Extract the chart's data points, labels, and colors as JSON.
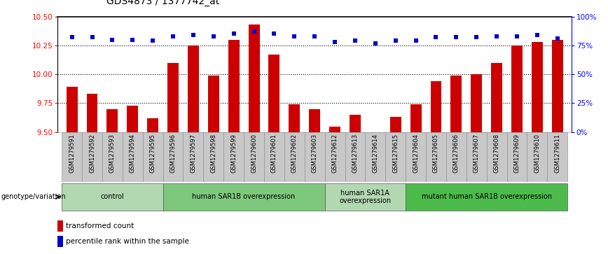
{
  "title": "GDS4873 / 1377742_at",
  "samples": [
    "GSM1279591",
    "GSM1279592",
    "GSM1279593",
    "GSM1279594",
    "GSM1279595",
    "GSM1279596",
    "GSM1279597",
    "GSM1279598",
    "GSM1279599",
    "GSM1279600",
    "GSM1279601",
    "GSM1279602",
    "GSM1279603",
    "GSM1279612",
    "GSM1279613",
    "GSM1279614",
    "GSM1279615",
    "GSM1279604",
    "GSM1279605",
    "GSM1279606",
    "GSM1279607",
    "GSM1279608",
    "GSM1279609",
    "GSM1279610",
    "GSM1279611"
  ],
  "bar_values": [
    9.89,
    9.83,
    9.7,
    9.73,
    9.62,
    10.1,
    10.25,
    9.99,
    10.3,
    10.43,
    10.17,
    9.74,
    9.7,
    9.55,
    9.65,
    9.5,
    9.63,
    9.74,
    9.94,
    9.99,
    10.0,
    10.1,
    10.25,
    10.28,
    10.3
  ],
  "percentile_values": [
    82,
    82,
    80,
    80,
    79,
    83,
    84,
    83,
    85,
    87,
    85,
    83,
    83,
    78,
    79,
    77,
    79,
    79,
    82,
    82,
    82,
    83,
    83,
    84,
    81
  ],
  "groups": [
    {
      "label": "control",
      "start": 0,
      "end": 4,
      "color": "#b2d8b2"
    },
    {
      "label": "human SAR1B overexpression",
      "start": 5,
      "end": 12,
      "color": "#7dc87d"
    },
    {
      "label": "human SAR1A\noverexpression",
      "start": 13,
      "end": 16,
      "color": "#b2d8b2"
    },
    {
      "label": "mutant human SAR1B overexpression",
      "start": 17,
      "end": 24,
      "color": "#4cbb4c"
    }
  ],
  "bar_color": "#cc0000",
  "dot_color": "#0000cc",
  "ylim_left": [
    9.5,
    10.5
  ],
  "ylim_right": [
    0,
    100
  ],
  "yticks_left": [
    9.5,
    9.75,
    10.0,
    10.25,
    10.5
  ],
  "yticks_right": [
    0,
    25,
    50,
    75,
    100
  ],
  "grid_values": [
    9.75,
    10.0,
    10.25
  ],
  "tick_bg_color": "#c8c8c8",
  "tick_border_color": "#888888",
  "genotype_label": "genotype/variation",
  "legend_bar": "transformed count",
  "legend_dot": "percentile rank within the sample",
  "title_fontsize": 10,
  "axis_fontsize": 7.5,
  "tick_fontsize": 6.0,
  "group_fontsize": 7.0,
  "legend_fontsize": 7.5
}
